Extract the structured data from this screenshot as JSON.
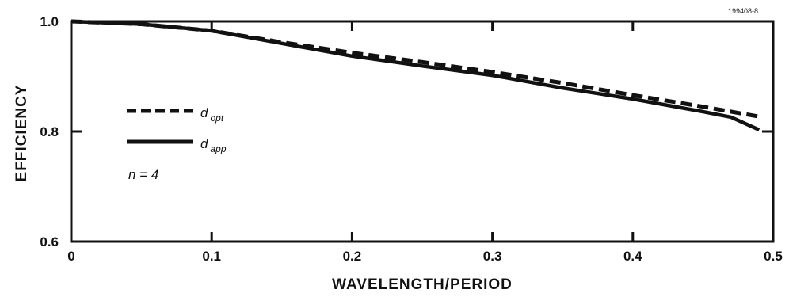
{
  "figure_id": "199408-8",
  "chart_data": {
    "type": "line",
    "title": "",
    "xlabel": "WAVELENGTH/PERIOD",
    "ylabel": "EFFICIENCY",
    "xlim": [
      0,
      0.5
    ],
    "ylim": [
      0.6,
      1.0
    ],
    "x_ticks": [
      "0",
      "0.1",
      "0.2",
      "0.3",
      "0.4",
      "0.5"
    ],
    "y_ticks": [
      "0.6",
      "0.8",
      "1.0"
    ],
    "grid": false,
    "legend_position": "left",
    "series": [
      {
        "name": "d opt",
        "legend_main": "d",
        "legend_sub": "opt",
        "style": "dashed",
        "x": [
          0,
          0.05,
          0.1,
          0.15,
          0.2,
          0.25,
          0.3,
          0.35,
          0.4,
          0.45,
          0.49
        ],
        "y": [
          1.0,
          0.995,
          0.983,
          0.962,
          0.943,
          0.926,
          0.908,
          0.888,
          0.866,
          0.845,
          0.827
        ]
      },
      {
        "name": "d app",
        "legend_main": "d",
        "legend_sub": "app",
        "style": "solid",
        "x": [
          0,
          0.05,
          0.1,
          0.15,
          0.2,
          0.25,
          0.3,
          0.35,
          0.4,
          0.45,
          0.47,
          0.49
        ],
        "y": [
          1.0,
          0.995,
          0.983,
          0.96,
          0.937,
          0.919,
          0.902,
          0.879,
          0.859,
          0.836,
          0.826,
          0.803
        ]
      }
    ],
    "annotation": "n = 4",
    "colors": {
      "line": "#111111",
      "axis": "#111111",
      "background": "#ffffff"
    }
  }
}
